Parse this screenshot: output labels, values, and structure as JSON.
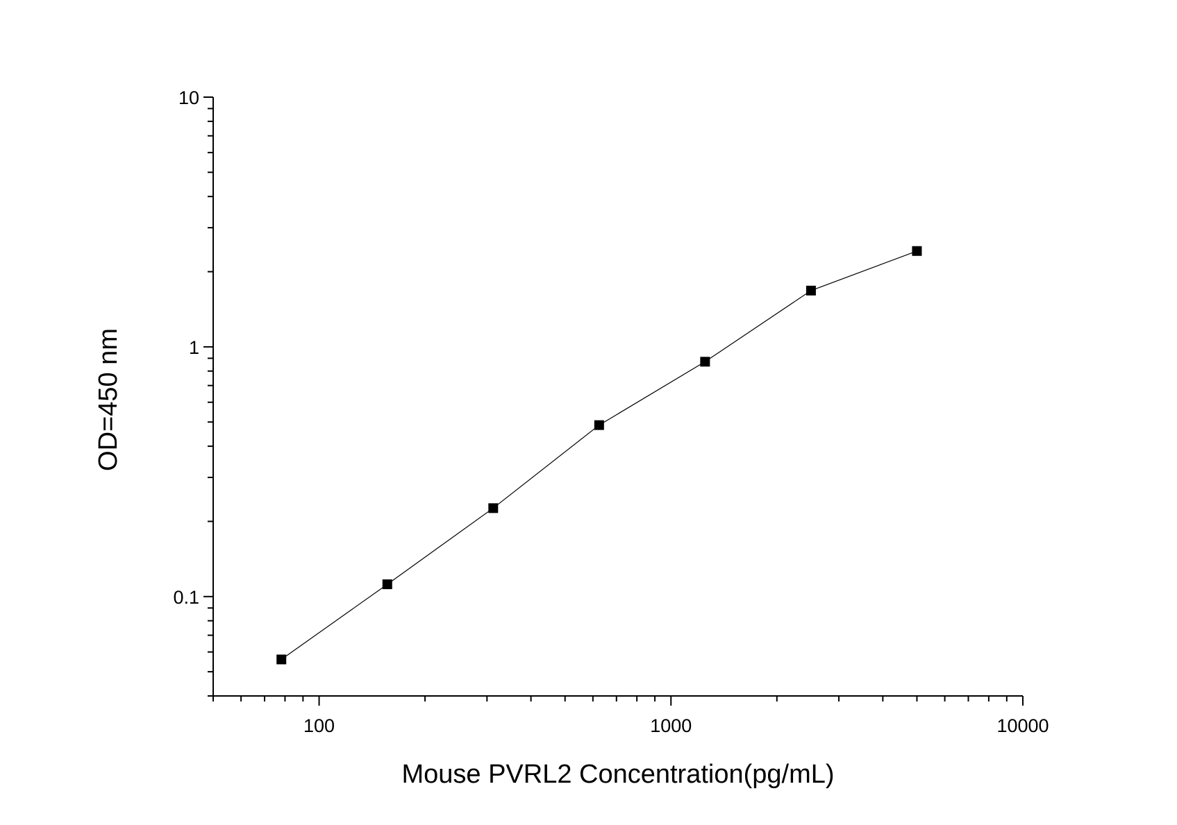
{
  "chart_data": {
    "type": "line",
    "title": "",
    "xlabel": "Mouse PVRL2 Concentration(pg/mL)",
    "ylabel": "OD=450 nm",
    "x_scale": "log",
    "y_scale": "log",
    "xlim": [
      50,
      10000
    ],
    "ylim": [
      0.04,
      10
    ],
    "x_ticks": [
      {
        "value": 100,
        "label": "100"
      },
      {
        "value": 1000,
        "label": "1000"
      },
      {
        "value": 10000,
        "label": "10000"
      }
    ],
    "y_ticks": [
      {
        "value": 0.1,
        "label": "0.1"
      },
      {
        "value": 1,
        "label": "1"
      },
      {
        "value": 10,
        "label": "10"
      }
    ],
    "grid": false,
    "legend": "none",
    "marker": "square",
    "colors": {
      "series": "#000000",
      "axis": "#000000"
    },
    "series": [
      {
        "x": [
          78.125,
          156.25,
          312.5,
          625,
          1250,
          2500,
          5000
        ],
        "y": [
          0.056,
          0.112,
          0.226,
          0.486,
          0.872,
          1.68,
          2.42
        ]
      }
    ]
  }
}
